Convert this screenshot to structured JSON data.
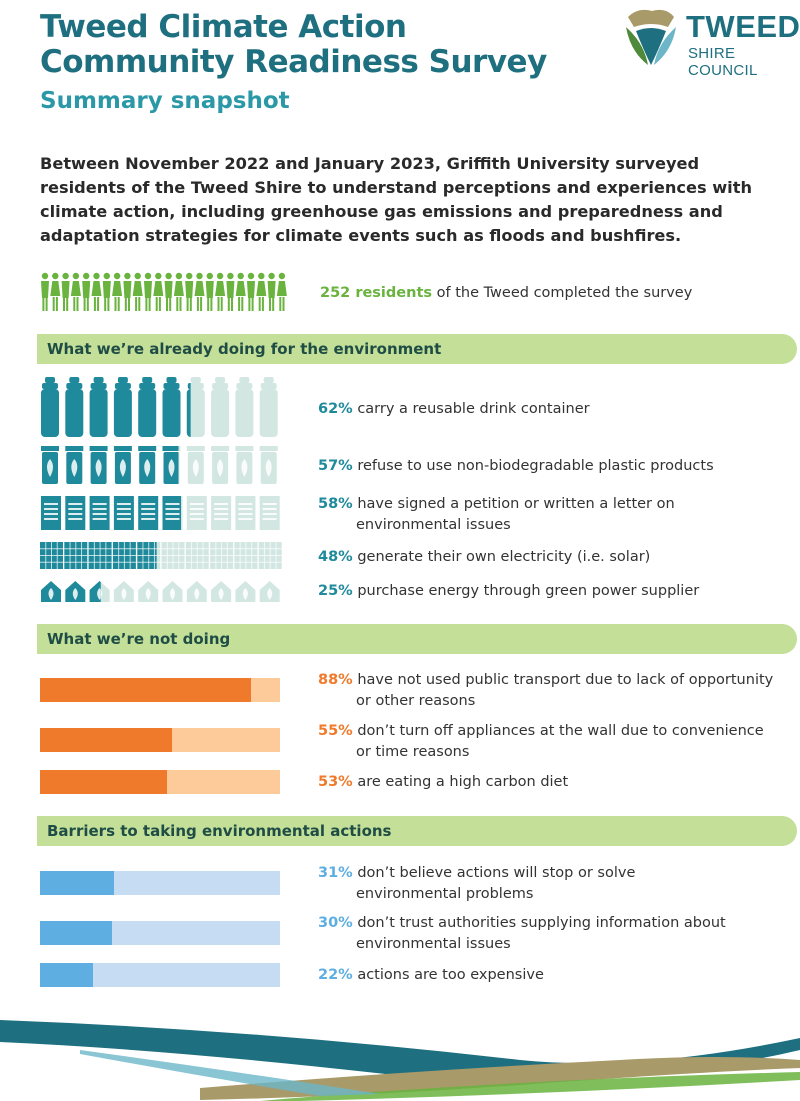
{
  "header": {
    "title_line1": "Tweed Climate Action",
    "title_line2": "Community Readiness Survey",
    "subtitle": "Summary snapshot"
  },
  "logo": {
    "word": "TWEED",
    "sub": "SHIRE COUNCIL",
    "icon": "leaf-shield-icon"
  },
  "intro": "Between November 2022 and January 2023, Griffith University surveyed residents of the Tweed Shire to understand perceptions and experiences with climate action, including greenhouse gas emissions and preparedness and adaptation strategies for climate events such as floods and bushfires.",
  "respondents": {
    "count_label": "252 residents",
    "rest": " of the Tweed completed the survey",
    "icon": "person-icon"
  },
  "sections": {
    "doing": {
      "title": "What we’re already doing for the environment",
      "items": [
        {
          "pct": "62%",
          "text": "carry a reusable drink container",
          "cont": "",
          "value": 62,
          "icon": "bottle-icon"
        },
        {
          "pct": "57%",
          "text": "refuse to use non-biodegradable plastic products",
          "cont": "",
          "value": 57,
          "icon": "recycle-bin-icon"
        },
        {
          "pct": "58%",
          "text": "have signed a petition or written a letter on",
          "cont": "environmental issues",
          "value": 58,
          "icon": "document-icon"
        },
        {
          "pct": "48%",
          "text": "generate their own electricity (i.e. solar)",
          "cont": "",
          "value": 48,
          "icon": "solar-panel-icon"
        },
        {
          "pct": "25%",
          "text": "purchase energy through green power supplier",
          "cont": "",
          "value": 25,
          "icon": "green-house-icon"
        }
      ]
    },
    "not_doing": {
      "title": "What we’re not doing",
      "items": [
        {
          "pct": "88%",
          "text": "have not used public transport due to lack of opportunity",
          "cont": "or other reasons",
          "value": 88
        },
        {
          "pct": "55%",
          "text": "don’t turn off appliances at the wall due to convenience",
          "cont": "or time reasons",
          "value": 55
        },
        {
          "pct": "53%",
          "text": "are eating a high carbon diet",
          "cont": "",
          "value": 53
        }
      ]
    },
    "barriers": {
      "title": "Barriers to taking environmental actions",
      "items": [
        {
          "pct": "31%",
          "text": "don’t believe actions will stop or solve",
          "cont": "environmental problems",
          "value": 31
        },
        {
          "pct": "30%",
          "text": "don’t trust authorities supplying information about",
          "cont": "environmental issues",
          "value": 30
        },
        {
          "pct": "22%",
          "text": "actions are too expensive",
          "cont": "",
          "value": 22
        }
      ]
    }
  },
  "colors": {
    "title": "#1e6f7f",
    "subtitle": "#2a98a6",
    "banner": "#c3df98",
    "teal": "#1f8a9b",
    "teal_light": "#d3e7e2",
    "orange": "#f07a2b",
    "orange_light": "#fdcb9a",
    "blue": "#5eaee1",
    "blue_light": "#c5dcf2",
    "green": "#69b33e"
  }
}
